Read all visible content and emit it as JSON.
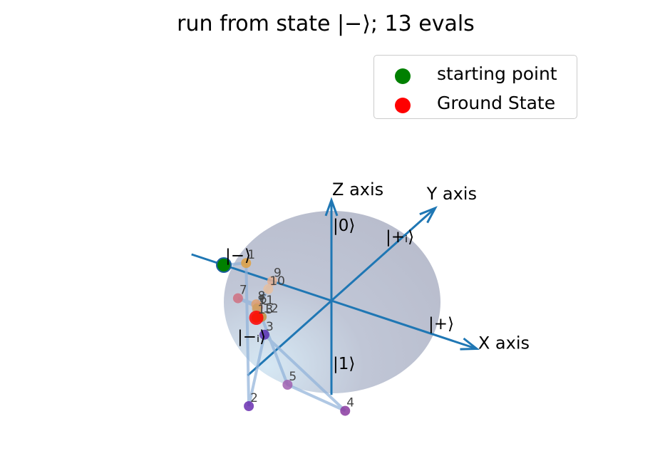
{
  "title": "run from state |−⟩; 13 evals",
  "legend": [
    {
      "label": "starting point",
      "color": "#008000"
    },
    {
      "label": "Ground State",
      "color": "#ff0000"
    }
  ],
  "chart_data": {
    "type": "scatter",
    "projection": "3d-bloch-sphere",
    "axes": {
      "x": "X axis",
      "y": "Y axis",
      "z": "Z axis"
    },
    "state_labels": {
      "zero": "|0⟩",
      "one": "|1⟩",
      "plus": "|+⟩",
      "minus": "|−⟩",
      "plus_i": "|+ᵢ⟩",
      "minus_i": "|−ᵢ⟩"
    },
    "starting_point": [
      -1.0,
      0.0,
      0.0
    ],
    "ground_state": [
      -0.55,
      -0.2,
      -0.25
    ],
    "evaluations": [
      {
        "label": "1",
        "coord": [
          -0.83,
          0.05,
          0.05
        ]
      },
      {
        "label": "2",
        "coord": [
          -0.1,
          -0.9,
          -0.5
        ]
      },
      {
        "label": "3",
        "coord": [
          -0.4,
          -0.3,
          -0.3
        ]
      },
      {
        "label": "4",
        "coord": [
          0.35,
          -0.3,
          -0.85
        ]
      },
      {
        "label": "5",
        "coord": [
          0.0,
          -0.55,
          -0.5
        ]
      },
      {
        "label": "6",
        "coord": [
          -0.55,
          -0.18,
          -0.15
        ]
      },
      {
        "label": "7",
        "coord": [
          -0.72,
          -0.2,
          -0.1
        ]
      },
      {
        "label": "8",
        "coord": [
          -0.55,
          -0.2,
          -0.1
        ]
      },
      {
        "label": "9",
        "coord": [
          -0.55,
          0.0,
          0.0
        ]
      },
      {
        "label": "10",
        "coord": [
          -0.55,
          -0.05,
          -0.05
        ]
      },
      {
        "label": "11",
        "coord": [
          -0.58,
          -0.15,
          -0.2
        ]
      },
      {
        "label": "12",
        "coord": [
          -0.5,
          -0.2,
          -0.22
        ]
      },
      {
        "label": "13",
        "coord": [
          -0.55,
          -0.2,
          -0.25
        ]
      }
    ],
    "evaluation_colors": [
      "#e0a040",
      "#6a2fb0",
      "#5a30b0",
      "#8a3aa0",
      "#a060b0",
      "#d08090",
      "#d07080",
      "#e0a070",
      "#e8b090",
      "#e8c0a0",
      "#d0a060",
      "#c09040",
      "#d09020"
    ],
    "grid": false
  }
}
